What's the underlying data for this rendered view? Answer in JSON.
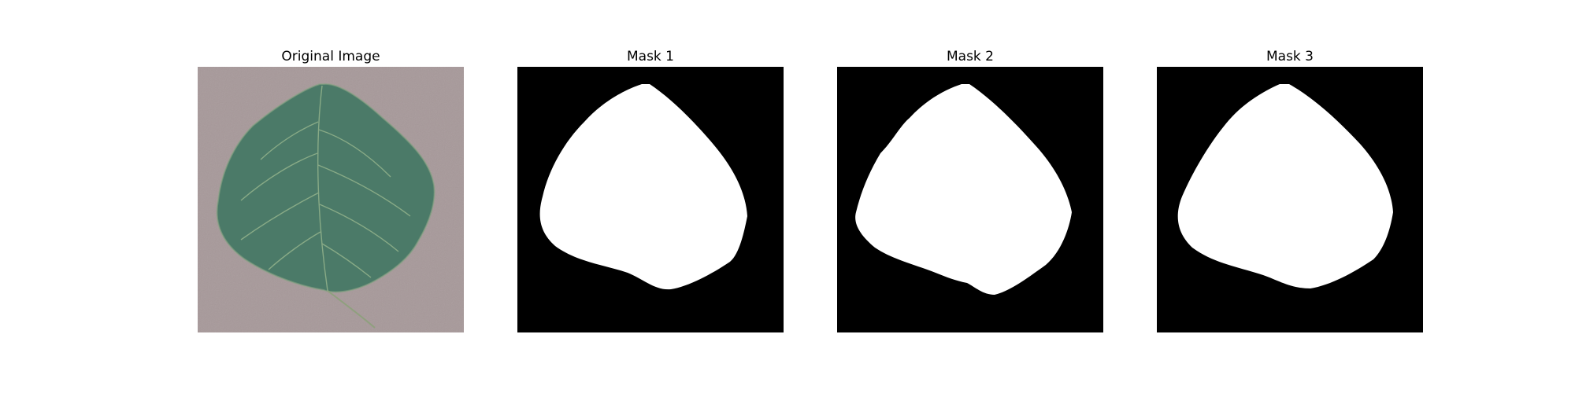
{
  "figure": {
    "panels": [
      {
        "title": "Original Image",
        "kind": "photo"
      },
      {
        "title": "Mask 1",
        "kind": "mask"
      },
      {
        "title": "Mask 2",
        "kind": "mask"
      },
      {
        "title": "Mask 3",
        "kind": "mask"
      }
    ]
  },
  "colors": {
    "background": "#ffffff",
    "mask_background": "#000000",
    "mask_foreground": "#ffffff",
    "photo_background": "#a7999a",
    "leaf_fill": "#4b7a68",
    "leaf_vein": "#8fb08a"
  }
}
